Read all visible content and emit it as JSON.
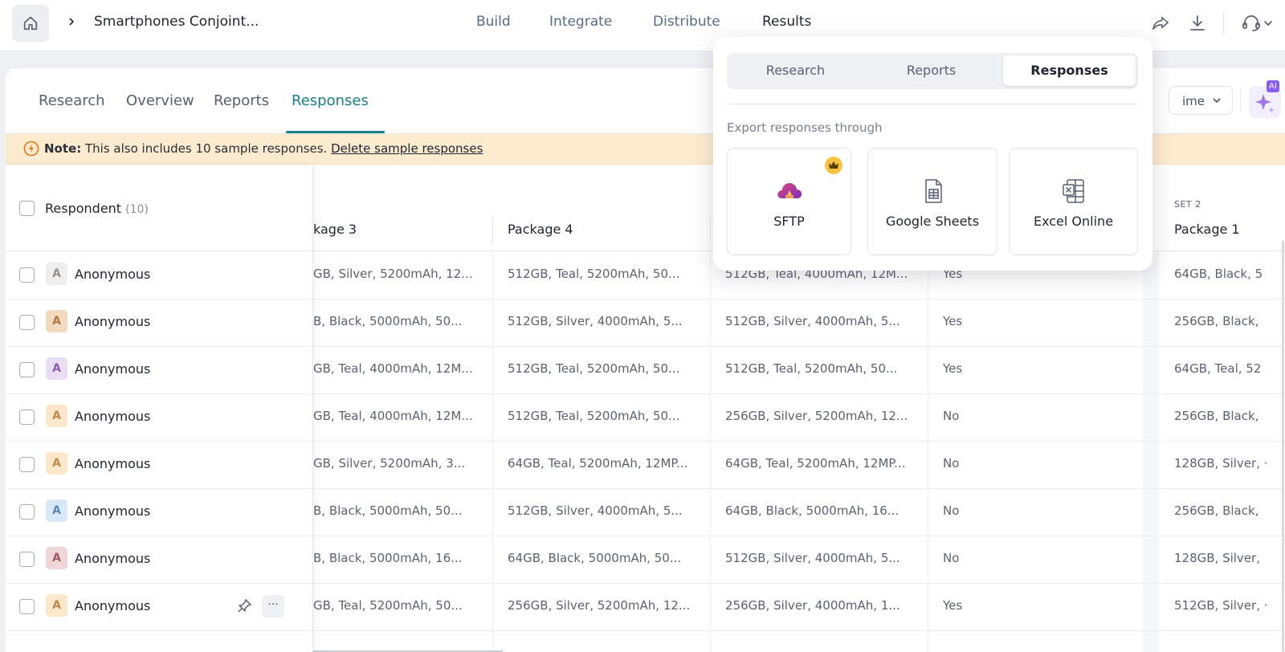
{
  "topbar": {
    "project_title": "Smartphones Conjoint...",
    "nav": {
      "build": "Build",
      "integrate": "Integrate",
      "distribute": "Distribute",
      "results": "Results"
    }
  },
  "subtabs": {
    "research": "Research",
    "overview": "Overview",
    "reports": "Reports",
    "responses": "Responses"
  },
  "time_filter": {
    "label": "ime"
  },
  "ai_badge": "AI",
  "note": {
    "label": "Note:",
    "text": "This also includes 10 sample responses.",
    "link": "Delete sample responses"
  },
  "table": {
    "respondent_header": "Respondent",
    "respondent_count": "(10)",
    "set_label": "SET 2",
    "columns": {
      "c1": "kage 3",
      "c2": "Package 4",
      "c5": "Package 1"
    },
    "rows": [
      {
        "name": "Anonymous",
        "c1": "GB, Silver, 5200mAh, 12...",
        "c2": "512GB, Teal, 5200mAh, 50...",
        "c3": "512GB, Teal, 4000mAh, 12M...",
        "c4": "Yes",
        "c5": "64GB, Black, 5"
      },
      {
        "name": "Anonymous",
        "c1": "B, Black, 5000mAh, 50...",
        "c2": "512GB, Silver, 4000mAh, 5...",
        "c3": "512GB, Silver, 4000mAh, 5...",
        "c4": "Yes",
        "c5": "256GB, Black,"
      },
      {
        "name": "Anonymous",
        "c1": "GB, Teal, 4000mAh, 12M...",
        "c2": "512GB, Teal, 5200mAh, 50...",
        "c3": "512GB, Teal, 5200mAh, 50...",
        "c4": "Yes",
        "c5": "64GB, Teal, 52"
      },
      {
        "name": "Anonymous",
        "c1": "GB, Teal, 4000mAh, 12M...",
        "c2": "512GB, Teal, 5200mAh, 50...",
        "c3": "256GB, Silver, 5200mAh, 12...",
        "c4": "No",
        "c5": "256GB, Black,"
      },
      {
        "name": "Anonymous",
        "c1": "GB, Silver, 5200mAh, 3...",
        "c2": "64GB, Teal, 5200mAh, 12MP...",
        "c3": "64GB, Teal, 5200mAh, 12MP...",
        "c4": "No",
        "c5": "128GB, Silver, ·"
      },
      {
        "name": "Anonymous",
        "c1": "B, Black, 5000mAh, 50...",
        "c2": "512GB, Silver, 4000mAh, 5...",
        "c3": "64GB, Black, 5000mAh, 16...",
        "c4": "No",
        "c5": "256GB, Black,"
      },
      {
        "name": "Anonymous",
        "c1": "B, Black, 5000mAh, 16...",
        "c2": "64GB, Black, 5000mAh, 50...",
        "c3": "512GB, Silver, 4000mAh, 5...",
        "c4": "No",
        "c5": "128GB, Silver,"
      },
      {
        "name": "Anonymous",
        "c1": "GB, Teal, 5200mAh, 50...",
        "c2": "256GB, Silver, 5200mAh, 12...",
        "c3": "256GB, Silver, 4000mAh, 1...",
        "c4": "Yes",
        "c5": "512GB, Silver, ·"
      }
    ],
    "row_actions": {
      "more": "···"
    }
  },
  "export_popover": {
    "tabs": {
      "research": "Research",
      "reports": "Reports",
      "responses": "Responses"
    },
    "label": "Export responses through",
    "options": {
      "sftp": "SFTP",
      "google_sheets": "Google Sheets",
      "excel_online": "Excel Online"
    }
  },
  "colors": {
    "accent": "#1a7f86",
    "note_bg": "#fdebd0",
    "avatar_gray": "#eeeeee",
    "avatar_tan": "#f3d9c0",
    "avatar_purple": "#eadcf3",
    "avatar_peach": "#fde7cc",
    "avatar_blue": "#d9e8f8",
    "avatar_rose": "#eed5d8"
  }
}
